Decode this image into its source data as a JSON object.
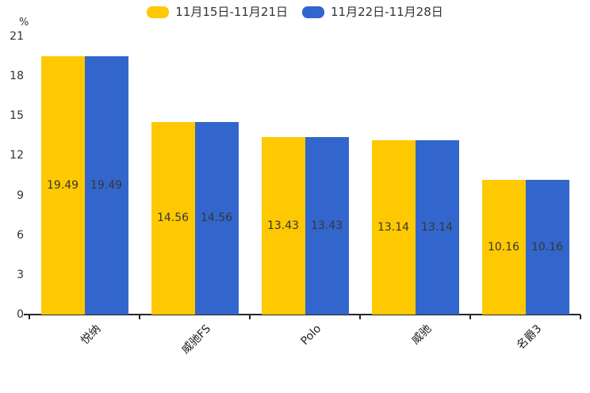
{
  "chart_data": {
    "type": "bar",
    "title": "",
    "categories": [
      "悦纳",
      "威驰FS",
      "Polo",
      "威驰",
      "名爵3"
    ],
    "series": [
      {
        "name": "11月15日-11月21日",
        "color": "#FEC900",
        "values": [
          19.49,
          14.56,
          13.43,
          13.14,
          10.16
        ]
      },
      {
        "name": "11月22日-11月28日",
        "color": "#3366CC",
        "values": [
          19.49,
          14.56,
          13.43,
          13.14,
          10.16
        ]
      }
    ],
    "ylabel": "%",
    "xlabel": "",
    "ylim": [
      0,
      21
    ],
    "yticks": [
      0,
      3,
      6,
      9,
      12,
      15,
      18,
      21
    ],
    "grid": false,
    "legend_position": "top",
    "value_label_position": "inside-middle",
    "x_label_rotation": -45,
    "axis_color": "#262626",
    "text_color": "#333333"
  }
}
